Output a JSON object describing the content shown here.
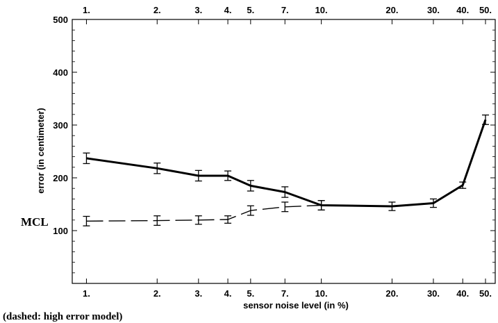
{
  "chart_data": {
    "type": "line",
    "x_scale": "log",
    "x_ticks": [
      1,
      2,
      3,
      4,
      5,
      7,
      10,
      20,
      30,
      40,
      50
    ],
    "x_tick_labels": [
      "1.",
      "2.",
      "3.",
      "4.",
      "5.",
      "7.",
      "10.",
      "20.",
      "30.",
      "40.",
      "50."
    ],
    "xlim": [
      0.87,
      55
    ],
    "ylim": [
      0,
      500
    ],
    "y_ticks": [
      100,
      200,
      300,
      400,
      500
    ],
    "y_tick_labels": [
      "100",
      "200",
      "300",
      "400",
      "500"
    ],
    "xlabel": "sensor noise level (in %)",
    "ylabel": "error (in centimeter)",
    "grid": false,
    "series": [
      {
        "style": "solid",
        "x": [
          1,
          2,
          3,
          4,
          5,
          7,
          10,
          20,
          30,
          40,
          50
        ],
        "y": [
          237,
          218,
          204,
          204,
          185,
          173,
          148,
          146,
          152,
          186,
          310
        ],
        "err": [
          10,
          10,
          10,
          9,
          10,
          10,
          9,
          8,
          8,
          6,
          9
        ]
      },
      {
        "style": "dashed",
        "x": [
          1,
          2,
          3,
          4,
          5,
          7,
          10
        ],
        "y": [
          118,
          119,
          120,
          121,
          138,
          145,
          148
        ],
        "err": [
          9,
          9,
          8,
          7,
          9,
          9,
          9
        ]
      }
    ],
    "annotations": {
      "mcl_label": "MCL",
      "dashed_note": "(dashed: high error model)"
    }
  }
}
